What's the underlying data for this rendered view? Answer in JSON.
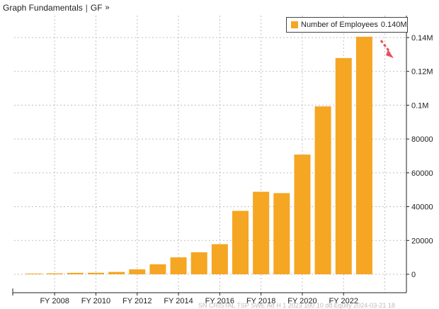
{
  "header": {
    "title": "Graph Fundamentals",
    "separator": "|",
    "code": "GF",
    "chevron": "»"
  },
  "legend": {
    "label": "Number of Employees",
    "value": "0.140M"
  },
  "colors": {
    "bar": "#f5a623",
    "grid": "#bfbfbf",
    "arrow": "#e8505b"
  },
  "icons": {
    "trend_arrow": "red-dashed-down-arrow"
  },
  "chart_data": {
    "type": "bar",
    "title": "",
    "xlabel": "",
    "ylabel": "",
    "y_axis_side": "right",
    "grid": true,
    "ylim": [
      0,
      148000
    ],
    "yticks": [
      0,
      20000,
      40000,
      60000,
      80000,
      100000,
      120000,
      140000
    ],
    "ytick_labels": [
      "0",
      "20000",
      "40000",
      "60000",
      "80000",
      "0.1M",
      "0.12M",
      "0.14M"
    ],
    "xtick_labels": [
      "FY 2008",
      "FY 2010",
      "FY 2012",
      "FY 2014",
      "FY 2016",
      "FY 2018",
      "FY 2020",
      "FY 2022"
    ],
    "categories": [
      "FY 2007",
      "FY 2008",
      "FY 2009",
      "FY 2010",
      "FY 2011",
      "FY 2012",
      "FY 2013",
      "FY 2014",
      "FY 2015",
      "FY 2016",
      "FY 2017",
      "FY 2018",
      "FY 2019",
      "FY 2020",
      "FY 2021",
      "FY 2022",
      "FY 2023"
    ],
    "series": [
      {
        "name": "Number of Employees",
        "values": [
          270,
          560,
          850,
          900,
          1400,
          2900,
          5900,
          10000,
          13000,
          17800,
          37500,
          48800,
          48000,
          70800,
          99300,
          127900,
          140500
        ]
      }
    ]
  },
  "footer": {
    "text": "SN CRISTAL TSP SWE Ad H 1 2023  100  10  dd Equity  2024-03-21 18"
  }
}
